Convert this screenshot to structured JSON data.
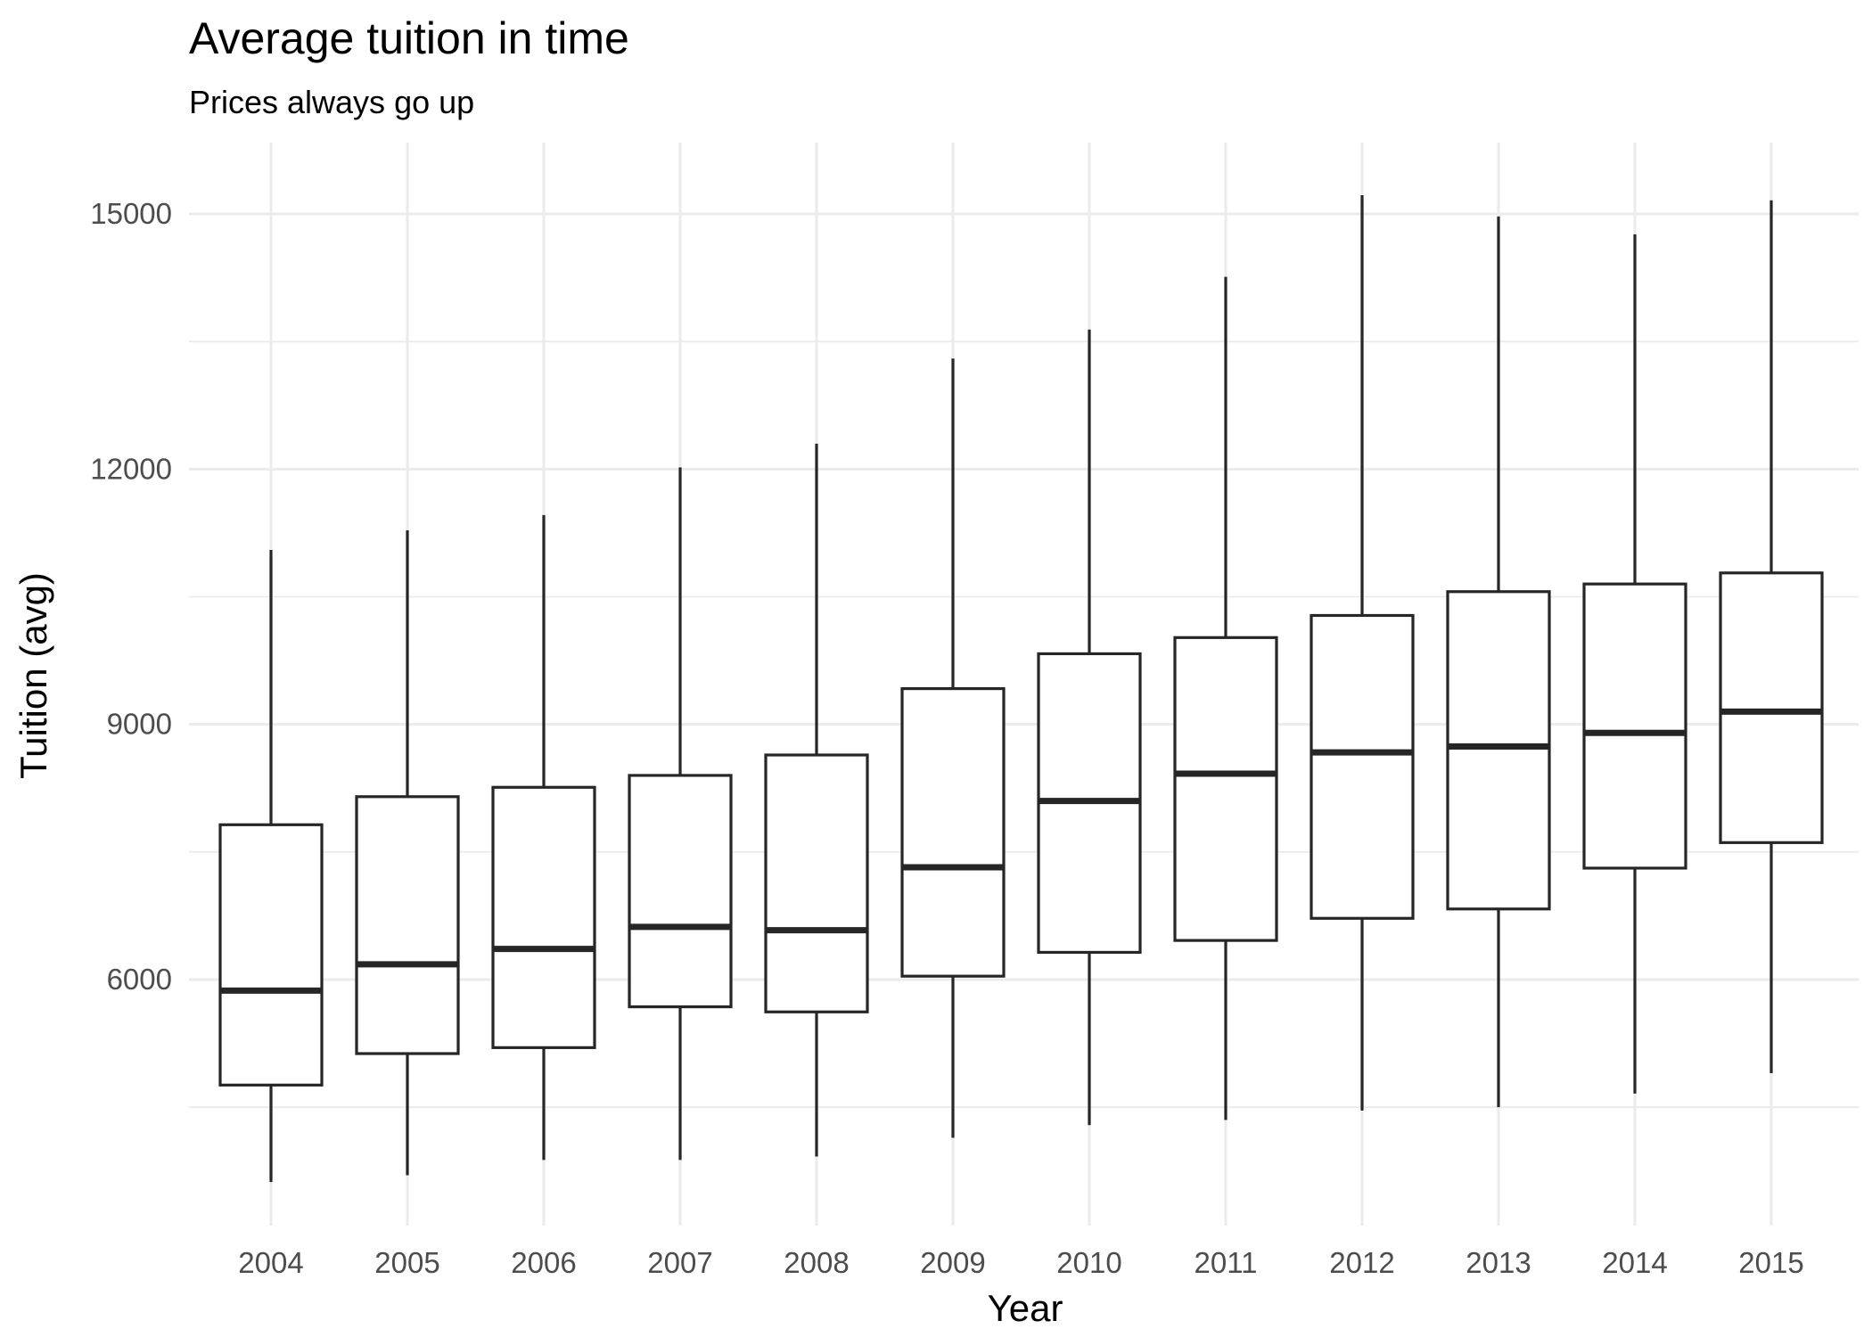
{
  "chart_data": {
    "type": "boxplot",
    "title": "Average tuition in time",
    "subtitle": "Prices always go up",
    "xlabel": "Year",
    "ylabel": "Tuition (avg)",
    "ylim": [
      3000,
      15800
    ],
    "y_ticks": [
      6000,
      9000,
      12000,
      15000
    ],
    "grid": true,
    "categories": [
      "2004",
      "2005",
      "2006",
      "2007",
      "2008",
      "2009",
      "2010",
      "2011",
      "2012",
      "2013",
      "2014",
      "2015"
    ],
    "boxes": [
      {
        "label": "2004",
        "lower": 3620,
        "q1": 4760,
        "median": 5870,
        "q3": 7820,
        "upper": 11050
      },
      {
        "label": "2005",
        "lower": 3700,
        "q1": 5130,
        "median": 6180,
        "q3": 8150,
        "upper": 11280
      },
      {
        "label": "2006",
        "lower": 3880,
        "q1": 5200,
        "median": 6360,
        "q3": 8260,
        "upper": 11460
      },
      {
        "label": "2007",
        "lower": 3880,
        "q1": 5680,
        "median": 6620,
        "q3": 8400,
        "upper": 12020
      },
      {
        "label": "2008",
        "lower": 3920,
        "q1": 5620,
        "median": 6580,
        "q3": 8640,
        "upper": 12300
      },
      {
        "label": "2009",
        "lower": 4140,
        "q1": 6040,
        "median": 7320,
        "q3": 9420,
        "upper": 13300
      },
      {
        "label": "2010",
        "lower": 4290,
        "q1": 6320,
        "median": 8100,
        "q3": 9830,
        "upper": 13640
      },
      {
        "label": "2011",
        "lower": 4350,
        "q1": 6460,
        "median": 8420,
        "q3": 10020,
        "upper": 14260
      },
      {
        "label": "2012",
        "lower": 4460,
        "q1": 6720,
        "median": 8670,
        "q3": 10280,
        "upper": 15220
      },
      {
        "label": "2013",
        "lower": 4500,
        "q1": 6830,
        "median": 8740,
        "q3": 10560,
        "upper": 14970
      },
      {
        "label": "2014",
        "lower": 4660,
        "q1": 7310,
        "median": 8900,
        "q3": 10650,
        "upper": 14760
      },
      {
        "label": "2015",
        "lower": 4900,
        "q1": 7610,
        "median": 9150,
        "q3": 10780,
        "upper": 15160
      }
    ]
  }
}
